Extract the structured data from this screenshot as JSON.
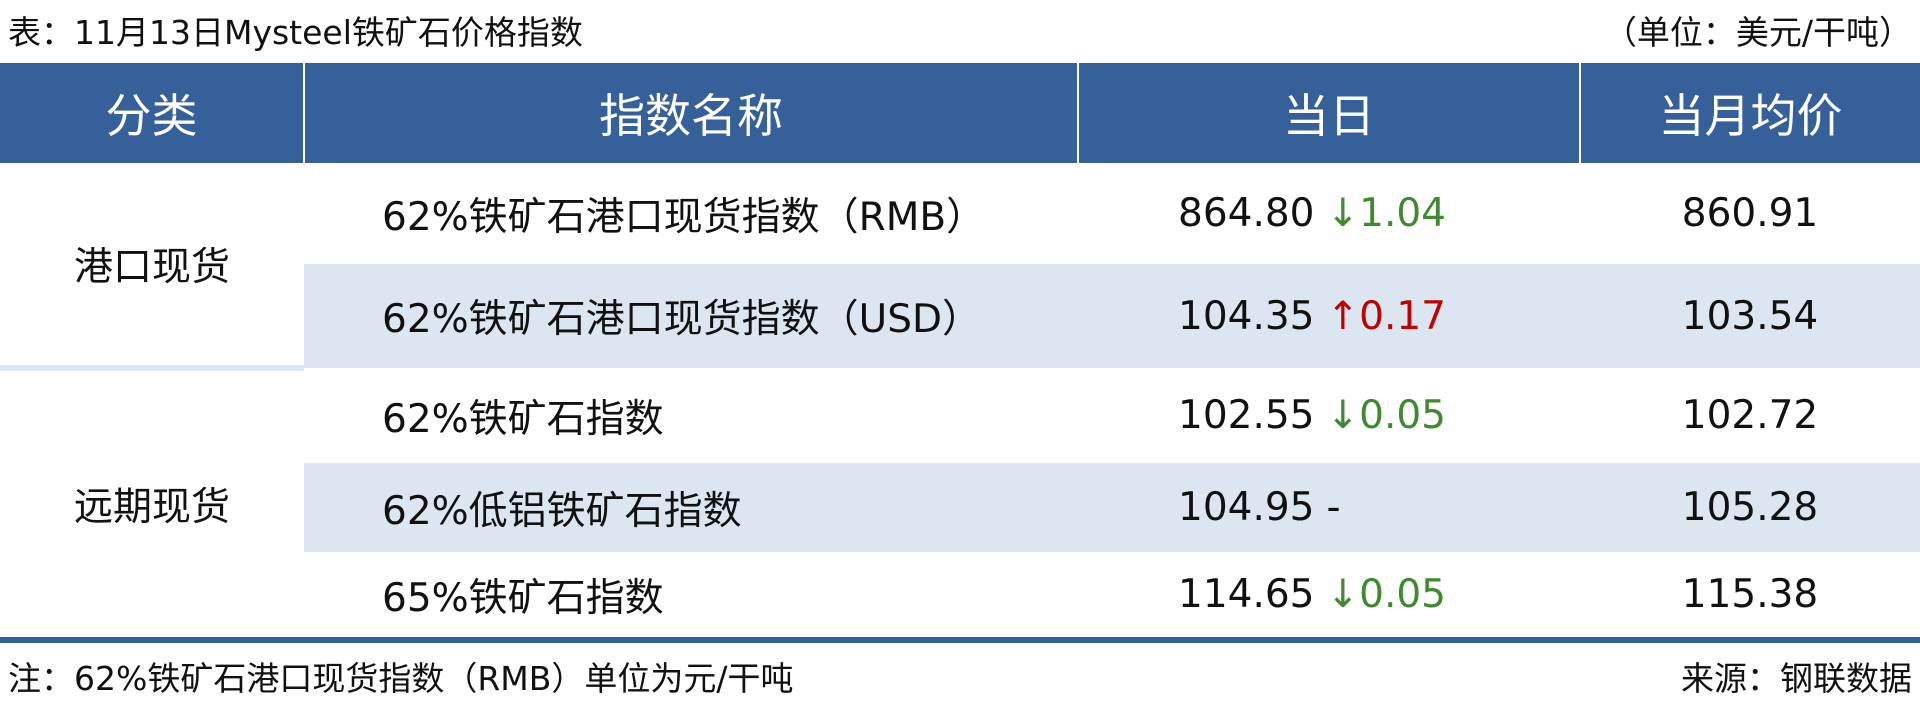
{
  "title": "表：11月13日Mysteel铁矿石价格指数",
  "unit": "（单位：美元/干吨）",
  "table": {
    "header": [
      "分类",
      "指数名称",
      "当日",
      "当月均价"
    ],
    "groups": [
      {
        "category": "港口现货",
        "rows": [
          {
            "name": "62%铁矿石港口现货指数（RMB）",
            "today": "864.80",
            "change": {
              "arrow": "↓",
              "value": "1.04",
              "color": "#3f8a2e"
            },
            "avg": "860.91"
          },
          {
            "name": "62%铁矿石港口现货指数（USD）",
            "today": "104.35",
            "change": {
              "arrow": "↑",
              "value": "0.17",
              "color": "#c00000"
            },
            "avg": "103.54"
          }
        ]
      },
      {
        "category": "远期现货",
        "rows": [
          {
            "name": "62%铁矿石指数",
            "today": "102.55",
            "change": {
              "arrow": "↓",
              "value": "0.05",
              "color": "#3f8a2e"
            },
            "avg": "102.72"
          },
          {
            "name": "62%低铝铁矿石指数",
            "today": "104.95",
            "change": {
              "value": "-"
            },
            "avg": "105.28"
          },
          {
            "name": "65%铁矿石指数",
            "today": "114.65",
            "change": {
              "arrow": "↓",
              "value": "0.05",
              "color": "#3f8a2e"
            },
            "avg": "115.38"
          }
        ]
      }
    ]
  },
  "footer": {
    "note": "注：62%铁矿石港口现货指数（RMB）单位为元/干吨",
    "source": "来源：钢联数据"
  }
}
